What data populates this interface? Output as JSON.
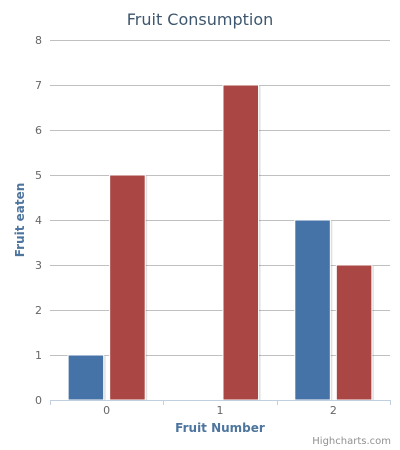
{
  "chart_data": {
    "type": "bar",
    "title": "Fruit Consumption",
    "xlabel": "Fruit Number",
    "ylabel": "Fruit eaten",
    "categories": [
      "0",
      "1",
      "2"
    ],
    "ylim": [
      0,
      8
    ],
    "yticks": [
      0,
      1,
      2,
      3,
      4,
      5,
      6,
      7,
      8
    ],
    "grid": true,
    "legend": "none",
    "series": [
      {
        "values": [
          1,
          0,
          4
        ],
        "color": "#4572a7"
      },
      {
        "values": [
          5,
          7,
          3
        ],
        "color": "#aa4643"
      }
    ]
  },
  "credits": "Highcharts.com"
}
